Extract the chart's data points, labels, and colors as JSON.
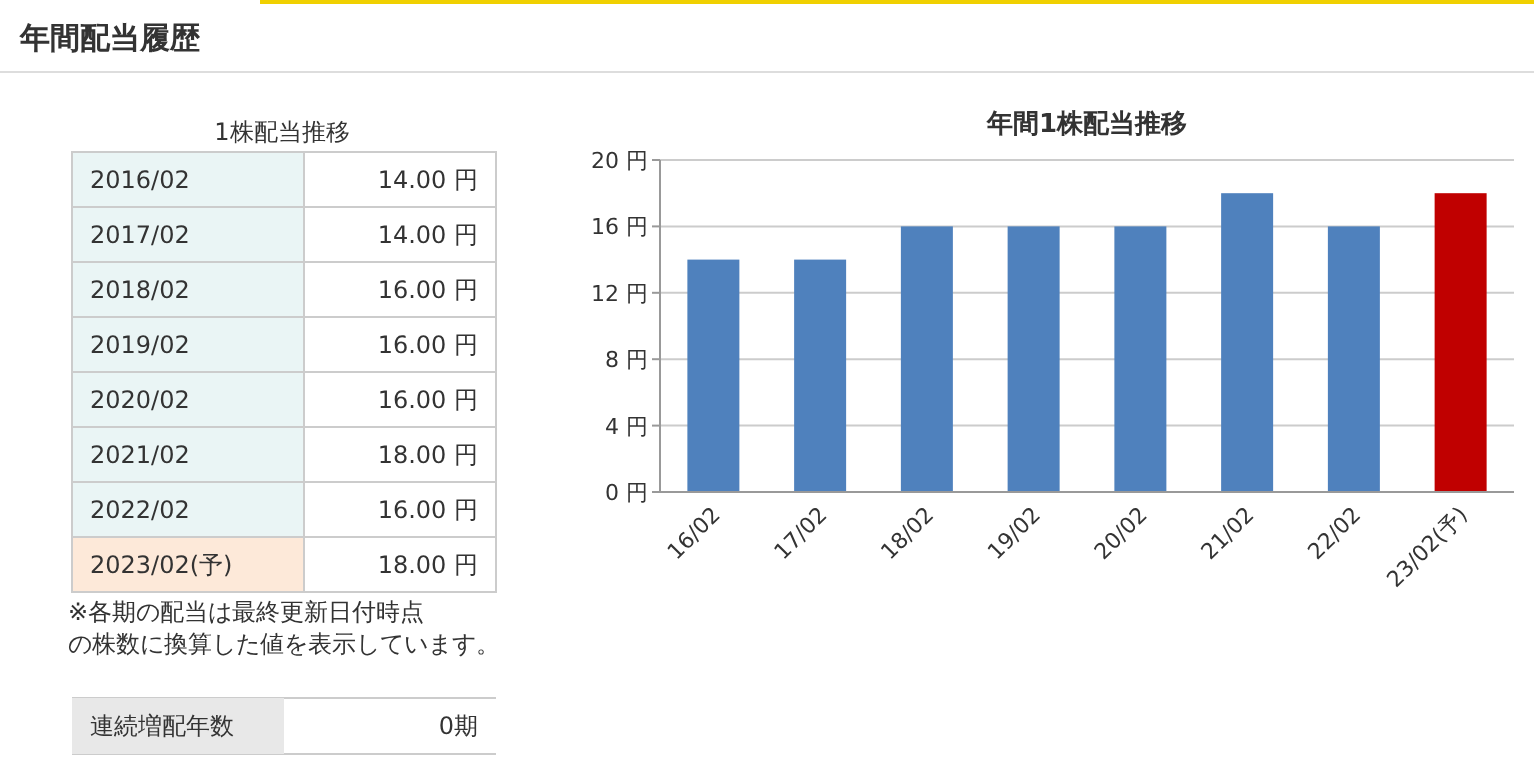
{
  "chart_data": [
    {
      "type": "other",
      "title": "年間配当履歴",
      "subtitle": "1株配当推移",
      "annotations": [
        "2016/02",
        "14.00 円",
        "2017/02",
        "14.00 円",
        "2018/02",
        "16.00 円",
        "2019/02",
        "16.00 円",
        "2020/02",
        "16.00 円",
        "2021/02",
        "18.00 円",
        "2022/02",
        "16.00 円",
        "2023/02(予)",
        "18.00 円",
        "※各期の配当は最終更新日付時点",
        "の株数に換算した値を表示しています。",
        "連続増配年数",
        "0期"
      ]
    },
    {
      "type": "bar",
      "title": "年間1株配当推移",
      "categories": [
        "16/02",
        "17/02",
        "18/02",
        "19/02",
        "20/02",
        "21/02",
        "22/02",
        "23/02(予)"
      ],
      "values": [
        14,
        14,
        16,
        16,
        16,
        18,
        16,
        18
      ],
      "colors": [
        "#4f81bd",
        "#4f81bd",
        "#4f81bd",
        "#4f81bd",
        "#4f81bd",
        "#4f81bd",
        "#4f81bd",
        "#c00000"
      ],
      "ylim": [
        0,
        20
      ],
      "yticks": [
        {
          "value": 0,
          "label": "0 円"
        },
        {
          "value": 4,
          "label": "4 円"
        },
        {
          "value": 8,
          "label": "8 円"
        },
        {
          "value": 12,
          "label": "12 円"
        },
        {
          "value": 16,
          "label": "16 円"
        },
        {
          "value": 20,
          "label": "20 円"
        }
      ],
      "grid": "y"
    }
  ]
}
